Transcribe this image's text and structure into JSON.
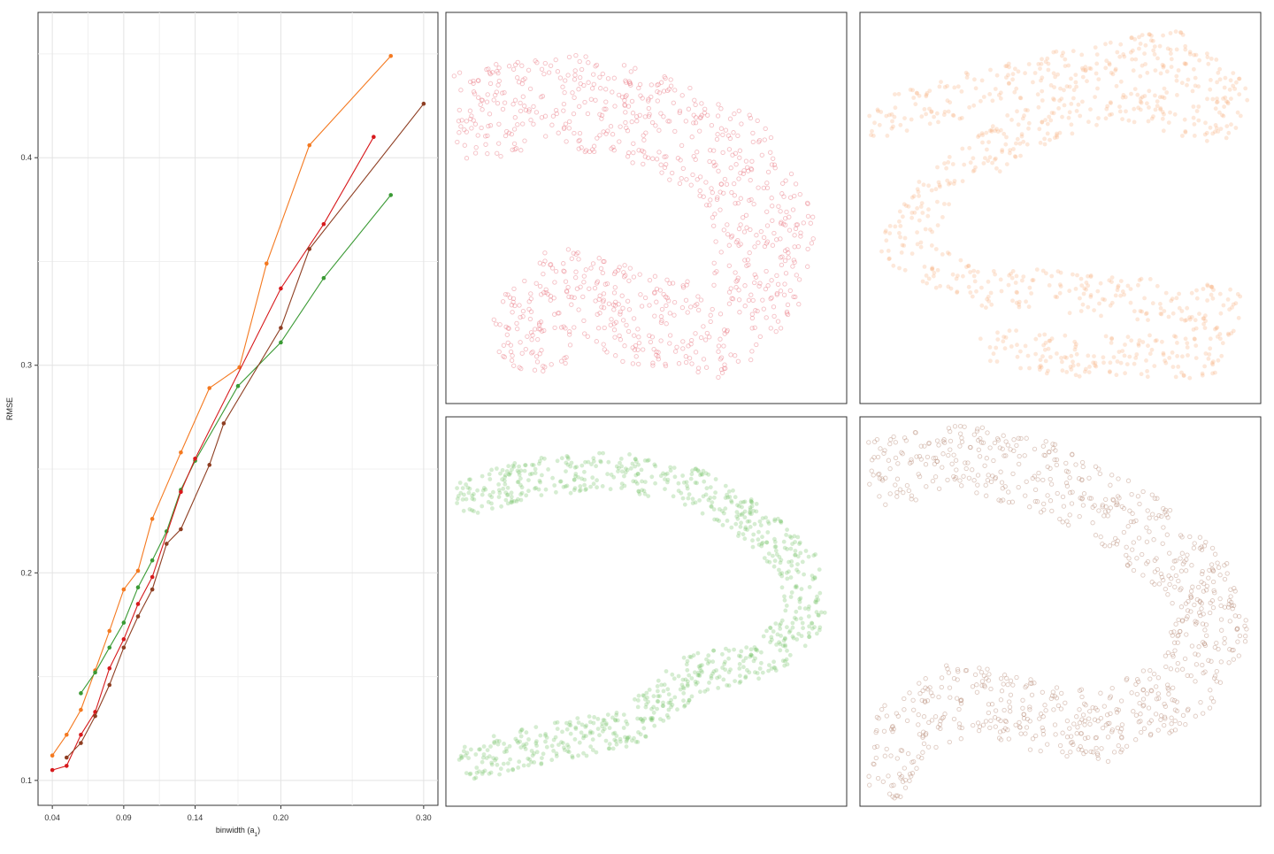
{
  "chart_data": [
    {
      "type": "line",
      "xlabel": "binwidth (a",
      "xlabel_sub": "1",
      "xlabel_close": ")",
      "ylabel": "RMSE",
      "xlim": [
        0.03,
        0.31
      ],
      "ylim": [
        0.088,
        0.47
      ],
      "xticks": [
        0.04,
        0.09,
        0.14,
        0.2,
        0.3
      ],
      "xtick_labels": [
        "0.04",
        "0.09",
        "0.14",
        "0.20",
        "0.30"
      ],
      "xminor": [
        0.065,
        0.115,
        0.17,
        0.25
      ],
      "yticks": [
        0.1,
        0.2,
        0.3,
        0.4
      ],
      "ytick_labels": [
        "0.1",
        "0.2",
        "0.3",
        "0.4"
      ],
      "yminor": [
        0.15,
        0.25,
        0.35,
        0.45
      ],
      "grid": true,
      "series": [
        {
          "color": "#F47920",
          "x": [
            0.04,
            0.05,
            0.06,
            0.07,
            0.08,
            0.09,
            0.1,
            0.11,
            0.13,
            0.15,
            0.171,
            0.19,
            0.22,
            0.277
          ],
          "y": [
            0.112,
            0.122,
            0.134,
            0.153,
            0.172,
            0.192,
            0.201,
            0.226,
            0.258,
            0.289,
            0.299,
            0.349,
            0.406,
            0.449
          ]
        },
        {
          "color": "#3A9A34",
          "x": [
            0.06,
            0.07,
            0.08,
            0.09,
            0.1,
            0.11,
            0.12,
            0.13,
            0.14,
            0.17,
            0.2,
            0.23,
            0.277
          ],
          "y": [
            0.142,
            0.152,
            0.164,
            0.176,
            0.193,
            0.206,
            0.22,
            0.24,
            0.254,
            0.29,
            0.311,
            0.342,
            0.382
          ]
        },
        {
          "color": "#D7191C",
          "x": [
            0.04,
            0.05,
            0.06,
            0.07,
            0.08,
            0.09,
            0.1,
            0.11,
            0.13,
            0.14,
            0.2,
            0.23,
            0.265
          ],
          "y": [
            0.105,
            0.107,
            0.122,
            0.133,
            0.154,
            0.168,
            0.185,
            0.198,
            0.239,
            0.255,
            0.337,
            0.368,
            0.41
          ]
        },
        {
          "color": "#8E3E22",
          "x": [
            0.05,
            0.06,
            0.07,
            0.08,
            0.09,
            0.1,
            0.11,
            0.12,
            0.13,
            0.15,
            0.16,
            0.2,
            0.22,
            0.3
          ],
          "y": [
            0.111,
            0.118,
            0.131,
            0.146,
            0.164,
            0.179,
            0.192,
            0.214,
            0.221,
            0.252,
            0.272,
            0.318,
            0.356,
            0.426
          ]
        }
      ]
    },
    {
      "type": "scatter",
      "shape": "c-shape",
      "color": "#E8737F",
      "style": "hollow",
      "n_points": 900
    },
    {
      "type": "scatter",
      "shape": "c-shape",
      "color": "#F8A26A",
      "style": "filled",
      "n_points": 900
    },
    {
      "type": "scatter",
      "shape": "c-shape",
      "color": "#6ABF5E",
      "style": "filled",
      "n_points": 900
    },
    {
      "type": "scatter",
      "shape": "c-shape",
      "color": "#B98B77",
      "style": "hollow",
      "n_points": 900
    }
  ]
}
